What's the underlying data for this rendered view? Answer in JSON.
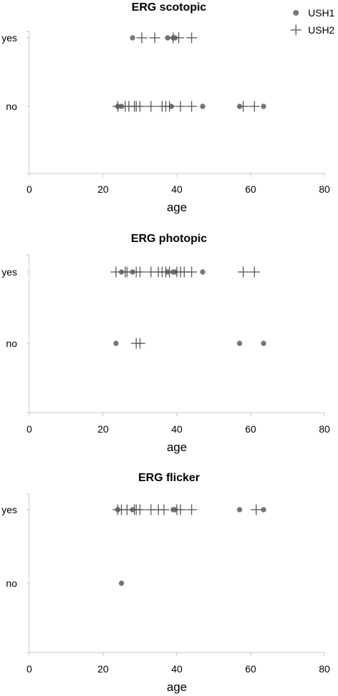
{
  "legend": {
    "placement": "top-right",
    "entries": [
      {
        "name": "USH1",
        "marker": "dot",
        "color": "#777777"
      },
      {
        "name": "USH2",
        "marker": "plus",
        "color": "#555555"
      }
    ]
  },
  "chart_data": [
    {
      "type": "scatter",
      "title": "ERG scotopic",
      "xlabel": "age",
      "ylabel": "",
      "xlim": [
        0,
        80
      ],
      "xticks": [
        0,
        20,
        40,
        60,
        80
      ],
      "y_categories": [
        "yes",
        "no"
      ],
      "grid": false,
      "series": [
        {
          "name": "USH1",
          "points": [
            {
              "x": 28,
              "y": "yes"
            },
            {
              "x": 37.5,
              "y": "yes"
            },
            {
              "x": 39,
              "y": "yes"
            },
            {
              "x": 39.5,
              "y": "yes"
            },
            {
              "x": 24,
              "y": "no"
            },
            {
              "x": 25,
              "y": "no"
            },
            {
              "x": 38.5,
              "y": "no"
            },
            {
              "x": 47,
              "y": "no"
            },
            {
              "x": 57,
              "y": "no"
            },
            {
              "x": 63.5,
              "y": "no"
            }
          ]
        },
        {
          "name": "USH2",
          "points": [
            {
              "x": 30.5,
              "y": "yes"
            },
            {
              "x": 34,
              "y": "yes"
            },
            {
              "x": 39,
              "y": "yes"
            },
            {
              "x": 40.5,
              "y": "yes"
            },
            {
              "x": 44,
              "y": "yes"
            },
            {
              "x": 24,
              "y": "no"
            },
            {
              "x": 26,
              "y": "no"
            },
            {
              "x": 27,
              "y": "no"
            },
            {
              "x": 28.5,
              "y": "no"
            },
            {
              "x": 29,
              "y": "no"
            },
            {
              "x": 30,
              "y": "no"
            },
            {
              "x": 33,
              "y": "no"
            },
            {
              "x": 36,
              "y": "no"
            },
            {
              "x": 37,
              "y": "no"
            },
            {
              "x": 38,
              "y": "no"
            },
            {
              "x": 41,
              "y": "no"
            },
            {
              "x": 44,
              "y": "no"
            },
            {
              "x": 58,
              "y": "no"
            },
            {
              "x": 61,
              "y": "no"
            }
          ]
        }
      ]
    },
    {
      "type": "scatter",
      "title": "ERG photopic",
      "xlabel": "age",
      "ylabel": "",
      "xlim": [
        0,
        80
      ],
      "xticks": [
        0,
        20,
        40,
        60,
        80
      ],
      "y_categories": [
        "yes",
        "no"
      ],
      "grid": false,
      "series": [
        {
          "name": "USH1",
          "points": [
            {
              "x": 25,
              "y": "yes"
            },
            {
              "x": 28,
              "y": "yes"
            },
            {
              "x": 37.5,
              "y": "yes"
            },
            {
              "x": 39,
              "y": "yes"
            },
            {
              "x": 39.5,
              "y": "yes"
            },
            {
              "x": 47,
              "y": "yes"
            },
            {
              "x": 23.5,
              "y": "no"
            },
            {
              "x": 57,
              "y": "no"
            },
            {
              "x": 63.5,
              "y": "no"
            }
          ]
        },
        {
          "name": "USH2",
          "points": [
            {
              "x": 23.5,
              "y": "yes"
            },
            {
              "x": 26,
              "y": "yes"
            },
            {
              "x": 26.5,
              "y": "yes"
            },
            {
              "x": 29,
              "y": "yes"
            },
            {
              "x": 30,
              "y": "yes"
            },
            {
              "x": 33,
              "y": "yes"
            },
            {
              "x": 35,
              "y": "yes"
            },
            {
              "x": 36,
              "y": "yes"
            },
            {
              "x": 37,
              "y": "yes"
            },
            {
              "x": 38,
              "y": "yes"
            },
            {
              "x": 40,
              "y": "yes"
            },
            {
              "x": 41,
              "y": "yes"
            },
            {
              "x": 42,
              "y": "yes"
            },
            {
              "x": 44,
              "y": "yes"
            },
            {
              "x": 58,
              "y": "yes"
            },
            {
              "x": 61,
              "y": "yes"
            },
            {
              "x": 29,
              "y": "no"
            },
            {
              "x": 30,
              "y": "no"
            }
          ]
        }
      ]
    },
    {
      "type": "scatter",
      "title": "ERG flicker",
      "xlabel": "age",
      "ylabel": "",
      "xlim": [
        0,
        80
      ],
      "xticks": [
        0,
        20,
        40,
        60,
        80
      ],
      "y_categories": [
        "yes",
        "no"
      ],
      "grid": false,
      "series": [
        {
          "name": "USH1",
          "points": [
            {
              "x": 24,
              "y": "yes"
            },
            {
              "x": 28,
              "y": "yes"
            },
            {
              "x": 39,
              "y": "yes"
            },
            {
              "x": 39.5,
              "y": "yes"
            },
            {
              "x": 57,
              "y": "yes"
            },
            {
              "x": 63.5,
              "y": "yes"
            },
            {
              "x": 25,
              "y": "no"
            }
          ]
        },
        {
          "name": "USH2",
          "points": [
            {
              "x": 24,
              "y": "yes"
            },
            {
              "x": 25,
              "y": "yes"
            },
            {
              "x": 26.5,
              "y": "yes"
            },
            {
              "x": 28.5,
              "y": "yes"
            },
            {
              "x": 29,
              "y": "yes"
            },
            {
              "x": 30,
              "y": "yes"
            },
            {
              "x": 33,
              "y": "yes"
            },
            {
              "x": 35,
              "y": "yes"
            },
            {
              "x": 36.5,
              "y": "yes"
            },
            {
              "x": 40,
              "y": "yes"
            },
            {
              "x": 41,
              "y": "yes"
            },
            {
              "x": 44,
              "y": "yes"
            },
            {
              "x": 61.5,
              "y": "yes"
            }
          ]
        }
      ]
    }
  ]
}
